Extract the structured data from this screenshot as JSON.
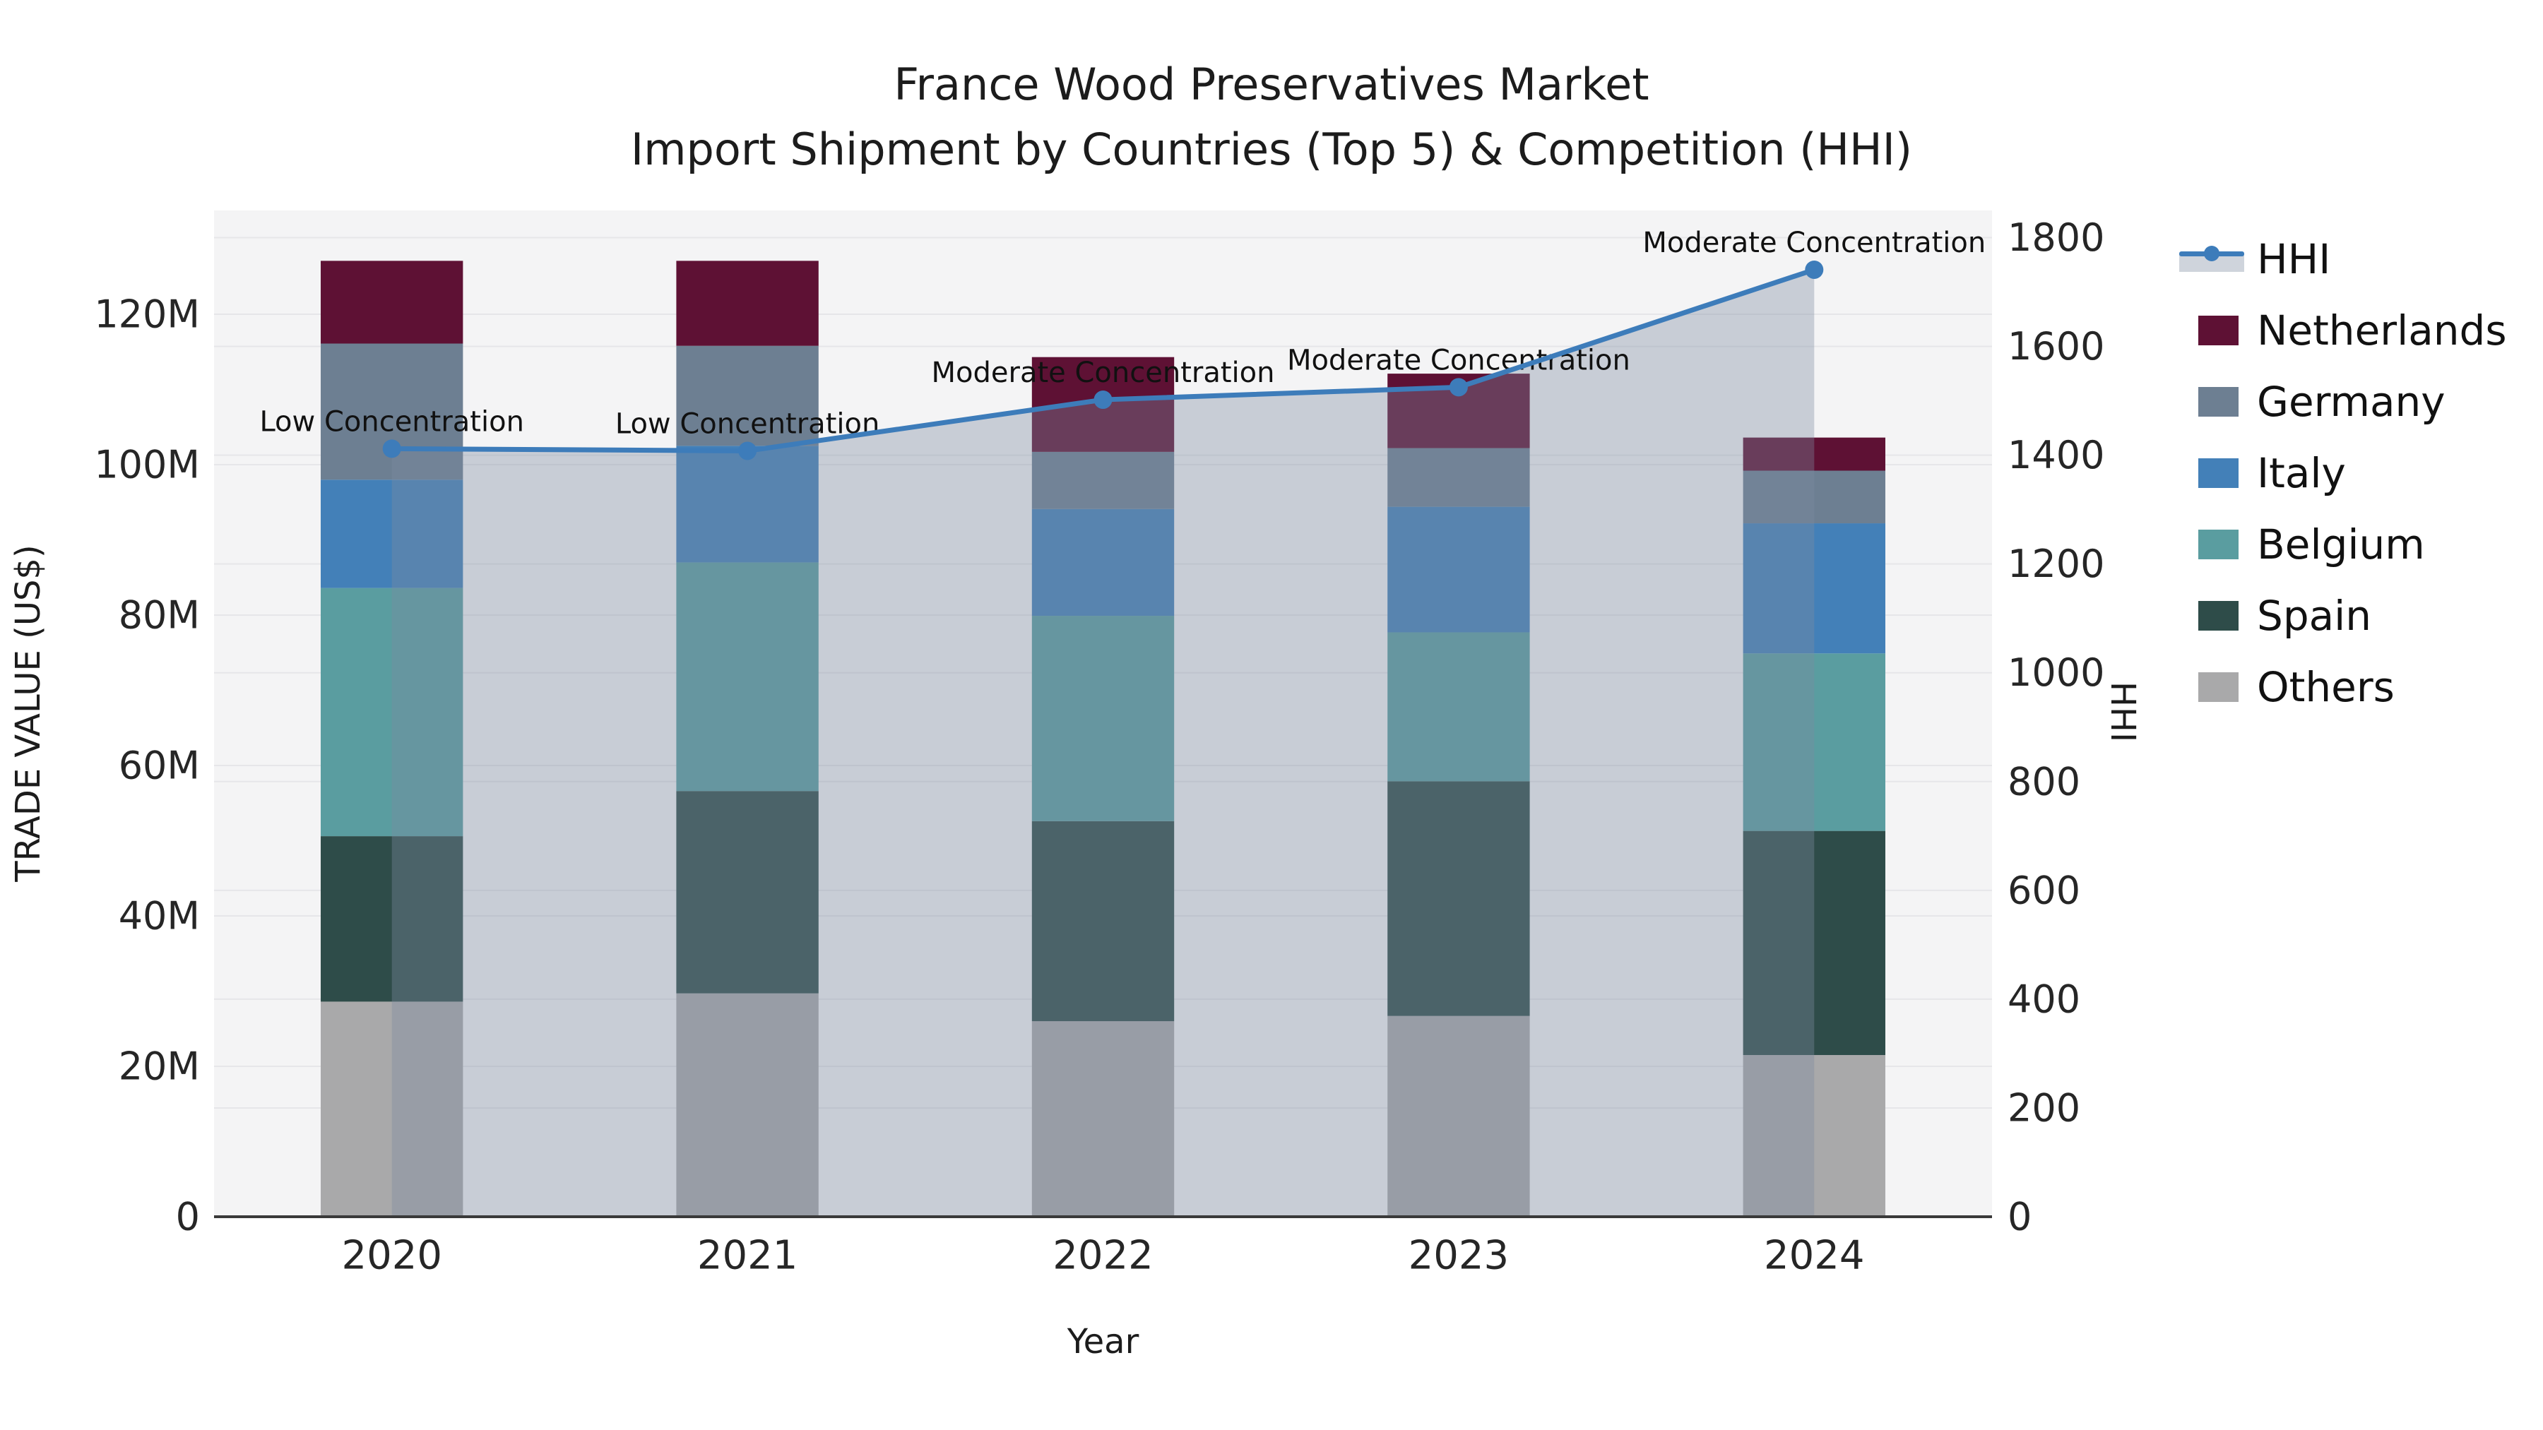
{
  "title": {
    "line1": "France Wood Preservatives Market",
    "line2": "Import Shipment by Countries (Top 5) & Competition (HHI)"
  },
  "axes": {
    "x_label": "Year",
    "y_left_label": "TRADE VALUE (US$)",
    "y_right_label": "HHI"
  },
  "chart_data": {
    "type": "bar",
    "subtype": "stacked bars (left axis, trade value) + HHI line with shaded area (right axis)",
    "categories": [
      "2020",
      "2021",
      "2022",
      "2023",
      "2024"
    ],
    "unit_left": "million US$",
    "series": [
      {
        "name": "Others",
        "color": "#a9a9aa",
        "values": [
          28.6,
          29.7,
          26.0,
          26.7,
          21.5
        ]
      },
      {
        "name": "Spain",
        "color": "#2e4c49",
        "values": [
          22.0,
          26.9,
          26.6,
          31.2,
          29.8
        ]
      },
      {
        "name": "Belgium",
        "color": "#5a9da0",
        "values": [
          33.0,
          30.4,
          27.3,
          19.8,
          23.6
        ]
      },
      {
        "name": "Italy",
        "color": "#4380b8",
        "values": [
          14.4,
          15.5,
          14.2,
          16.7,
          17.3
        ]
      },
      {
        "name": "Germany",
        "color": "#6d7f92",
        "values": [
          18.1,
          13.3,
          7.6,
          7.8,
          7.0
        ]
      },
      {
        "name": "Netherlands",
        "color": "#5e1134",
        "values": [
          11.0,
          11.3,
          12.6,
          9.9,
          4.4
        ]
      }
    ],
    "bar_totals": [
      127.1,
      127.1,
      114.3,
      112.1,
      103.6
    ],
    "line": {
      "name": "HHI",
      "values": [
        1412,
        1408,
        1502,
        1525,
        1741
      ],
      "color": "#3d7cba",
      "marker": "circle",
      "area_fill": "rgba(126,137,159,0.37)"
    },
    "annotations": [
      {
        "category": "2020",
        "text": "Low Concentration"
      },
      {
        "category": "2021",
        "text": "Low Concentration"
      },
      {
        "category": "2022",
        "text": "Moderate Concentration"
      },
      {
        "category": "2023",
        "text": "Moderate Concentration"
      },
      {
        "category": "2024",
        "text": "Moderate Concentration"
      }
    ],
    "y_left": {
      "tick_values": [
        0,
        20,
        40,
        60,
        80,
        100,
        120
      ],
      "tick_labels": [
        "0",
        "20M",
        "40M",
        "60M",
        "80M",
        "100M",
        "120M"
      ],
      "range": [
        0,
        133.8
      ],
      "label": "TRADE VALUE (US$)"
    },
    "y_right": {
      "tick_values": [
        0,
        200,
        400,
        600,
        800,
        1000,
        1200,
        1400,
        1600,
        1800
      ],
      "tick_labels": [
        "0",
        "200",
        "400",
        "600",
        "800",
        "1000",
        "1200",
        "1400",
        "1600",
        "1800"
      ],
      "range": [
        0,
        1850
      ],
      "label": "HHI"
    },
    "x": {
      "label": "Year",
      "tick_labels": [
        "2020",
        "2021",
        "2022",
        "2023",
        "2024"
      ]
    },
    "legend": [
      {
        "label": "HHI",
        "type": "line",
        "color": "#3d7cba",
        "band_color": "#cfd4dc"
      },
      {
        "label": "Netherlands",
        "type": "patch",
        "color": "#5e1134"
      },
      {
        "label": "Germany",
        "type": "patch",
        "color": "#6d7f92"
      },
      {
        "label": "Italy",
        "type": "patch",
        "color": "#4380b8"
      },
      {
        "label": "Belgium",
        "type": "patch",
        "color": "#5a9da0"
      },
      {
        "label": "Spain",
        "type": "patch",
        "color": "#2e4c49"
      },
      {
        "label": "Others",
        "type": "patch",
        "color": "#a9a9aa"
      }
    ],
    "style": {
      "plot_background": "#f4f4f5",
      "gridline_color": "#e6e6e9",
      "spine_color": "#3a3a3a",
      "text_color": "#262626",
      "legend_on": true,
      "grid_on": true
    }
  }
}
